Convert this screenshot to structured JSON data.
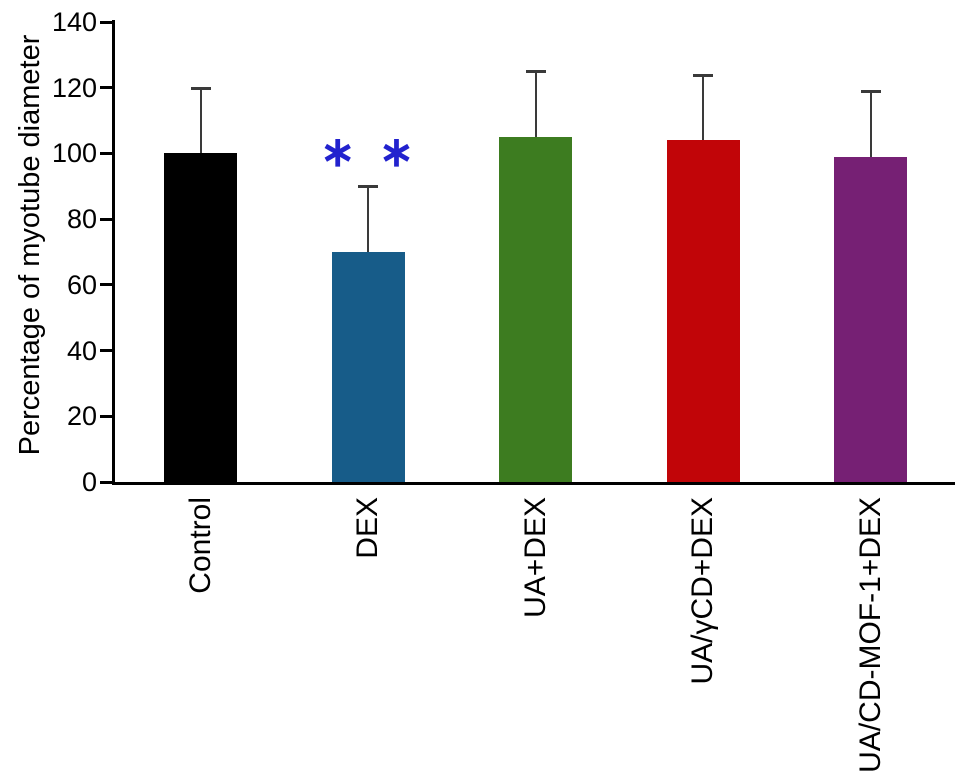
{
  "figure": {
    "background": "#ffffff"
  },
  "chart_data": {
    "type": "bar",
    "title": "",
    "xlabel": "",
    "ylabel": "Percentage of myotube diameter",
    "ylim": [
      0,
      140
    ],
    "yticks": [
      0,
      20,
      40,
      60,
      80,
      100,
      120,
      140
    ],
    "grid": false,
    "legend": null,
    "categories": [
      "Control",
      "DEX",
      "UA+DEX",
      "UA/γCD+DEX",
      "UA/CD-MOF-1+DEX"
    ],
    "values": [
      100,
      70,
      105,
      104,
      99
    ],
    "error_up": [
      20,
      20,
      20,
      20,
      20
    ],
    "bar_colors": [
      "#000000",
      "#175C89",
      "#3D7C20",
      "#C10508",
      "#762074"
    ],
    "error_color": "#3a3a3a",
    "annotations": [
      {
        "text": "∗ ∗",
        "category_index": 1,
        "color": "#2222CE"
      }
    ]
  }
}
